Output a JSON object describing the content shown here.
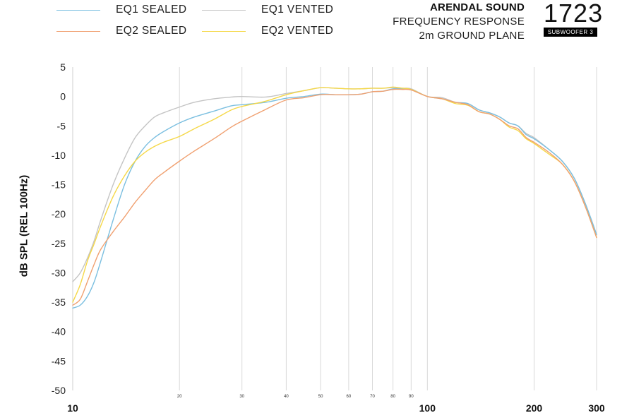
{
  "header": {
    "brand": "ARENDAL SOUND",
    "line1": "FREQUENCY RESPONSE",
    "line2": "2m GROUND PLANE",
    "logo_number": "1723",
    "logo_tag": "SUBWOOFER 3"
  },
  "legend": [
    {
      "name": "EQ1 SEALED",
      "color": "#7bbfe0"
    },
    {
      "name": "EQ1 VENTED",
      "color": "#c4c4c4"
    },
    {
      "name": "EQ2 SEALED",
      "color": "#f0a070"
    },
    {
      "name": "EQ2 VENTED",
      "color": "#f5d848"
    }
  ],
  "chart_data": {
    "type": "line",
    "title": "",
    "xlabel": "",
    "ylabel": "dB SPL (REL 100Hz)",
    "x_scale": "log",
    "xlim": [
      10,
      300
    ],
    "ylim": [
      -50,
      5
    ],
    "grid": "vertical",
    "y_ticks": [
      5,
      0,
      -5,
      -10,
      -15,
      -20,
      -25,
      -30,
      -35,
      -40,
      -45,
      -50
    ],
    "x_major_ticks": [
      {
        "value": 10,
        "label": "10"
      },
      {
        "value": 100,
        "label": "100"
      },
      {
        "value": 200,
        "label": "200"
      },
      {
        "value": 300,
        "label": "300"
      }
    ],
    "x_minor_ticks": [
      {
        "value": 20,
        "label": "20"
      },
      {
        "value": 30,
        "label": "30"
      },
      {
        "value": 40,
        "label": "40"
      },
      {
        "value": 50,
        "label": "50"
      },
      {
        "value": 60,
        "label": "60"
      },
      {
        "value": 70,
        "label": "70"
      },
      {
        "value": 80,
        "label": "80"
      },
      {
        "value": 90,
        "label": "90"
      }
    ],
    "series": [
      {
        "name": "EQ1 SEALED",
        "color": "#7bbfe0",
        "x": [
          10,
          10.5,
          11,
          11.5,
          12,
          13,
          14,
          15,
          16,
          17,
          18,
          20,
          22,
          25,
          28,
          30,
          35,
          40,
          45,
          50,
          55,
          60,
          65,
          70,
          75,
          80,
          85,
          90,
          100,
          110,
          120,
          130,
          140,
          150,
          160,
          170,
          180,
          190,
          200,
          220,
          240,
          260,
          280,
          300
        ],
        "y": [
          -36,
          -35.5,
          -34,
          -31.5,
          -28,
          -21,
          -15,
          -11,
          -8.5,
          -7,
          -6,
          -4.5,
          -3.5,
          -2.5,
          -1.6,
          -1.4,
          -1,
          -0.3,
          0,
          0.4,
          0.3,
          0.3,
          0.4,
          0.8,
          0.9,
          1.3,
          1.3,
          1.2,
          0,
          -0.4,
          -1,
          -1.2,
          -2.3,
          -2.8,
          -3.5,
          -4.5,
          -5,
          -6.5,
          -7.2,
          -9,
          -11,
          -14,
          -18.5,
          -23.5
        ]
      },
      {
        "name": "EQ1 VENTED",
        "color": "#c4c4c4",
        "x": [
          10,
          10.5,
          11,
          11.5,
          12,
          13,
          14,
          15,
          16,
          17,
          18,
          20,
          22,
          25,
          28,
          30,
          35,
          40,
          45,
          50,
          55,
          60,
          65,
          70,
          75,
          80,
          85,
          90,
          100,
          110,
          120,
          130,
          140,
          150,
          160,
          170,
          180,
          190,
          200,
          220,
          240,
          260,
          280,
          300
        ],
        "y": [
          -31.5,
          -30,
          -27.5,
          -24.5,
          -21,
          -15,
          -10.5,
          -7,
          -5,
          -3.5,
          -2.8,
          -1.8,
          -1,
          -0.4,
          -0.1,
          0,
          -0.1,
          0.5,
          1,
          1.5,
          1.4,
          1.3,
          1.3,
          1.4,
          1.4,
          1.5,
          1.4,
          1.3,
          0,
          -0.2,
          -1,
          -1.2,
          -2.3,
          -2.8,
          -3.5,
          -4.5,
          -5,
          -6.3,
          -7,
          -9,
          -11,
          -14,
          -18.5,
          -23.5
        ]
      },
      {
        "name": "EQ2 SEALED",
        "color": "#f0a070",
        "x": [
          10,
          10.5,
          11,
          11.5,
          12,
          13,
          14,
          15,
          16,
          17,
          18,
          20,
          22,
          25,
          28,
          30,
          35,
          40,
          45,
          50,
          55,
          60,
          65,
          70,
          75,
          80,
          85,
          90,
          100,
          110,
          120,
          130,
          140,
          150,
          160,
          170,
          180,
          190,
          200,
          220,
          240,
          260,
          280,
          300
        ],
        "y": [
          -35.5,
          -34.5,
          -31.5,
          -28.5,
          -26,
          -23,
          -20.5,
          -18,
          -16,
          -14.2,
          -13,
          -11,
          -9.3,
          -7.2,
          -5.2,
          -4.2,
          -2.2,
          -0.6,
          -0.2,
          0.3,
          0.3,
          0.3,
          0.4,
          0.8,
          0.9,
          1.2,
          1.2,
          1.1,
          0,
          -0.4,
          -1,
          -1.4,
          -2.6,
          -3,
          -3.9,
          -5,
          -5.5,
          -7,
          -7.8,
          -9.5,
          -11.5,
          -14.5,
          -19,
          -24
        ]
      },
      {
        "name": "EQ2 VENTED",
        "color": "#f5d848",
        "x": [
          10,
          10.5,
          11,
          11.5,
          12,
          13,
          14,
          15,
          16,
          17,
          18,
          20,
          22,
          25,
          28,
          30,
          35,
          40,
          45,
          50,
          55,
          60,
          65,
          70,
          75,
          80,
          85,
          90,
          100,
          110,
          120,
          130,
          140,
          150,
          160,
          170,
          180,
          190,
          200,
          220,
          240,
          260,
          280,
          300
        ],
        "y": [
          -35,
          -32,
          -28,
          -25,
          -22,
          -17,
          -13.5,
          -11,
          -9.5,
          -8.5,
          -7.8,
          -6.8,
          -5.5,
          -3.9,
          -2.3,
          -1.7,
          -0.8,
          0.3,
          1,
          1.5,
          1.4,
          1.3,
          1.3,
          1.4,
          1.4,
          1.6,
          1.4,
          1.2,
          0,
          -0.4,
          -1.2,
          -1.5,
          -2.6,
          -3,
          -3.9,
          -5.2,
          -5.8,
          -7.2,
          -8,
          -9.8,
          -11.5,
          -14.5,
          -19,
          -24
        ]
      }
    ]
  }
}
